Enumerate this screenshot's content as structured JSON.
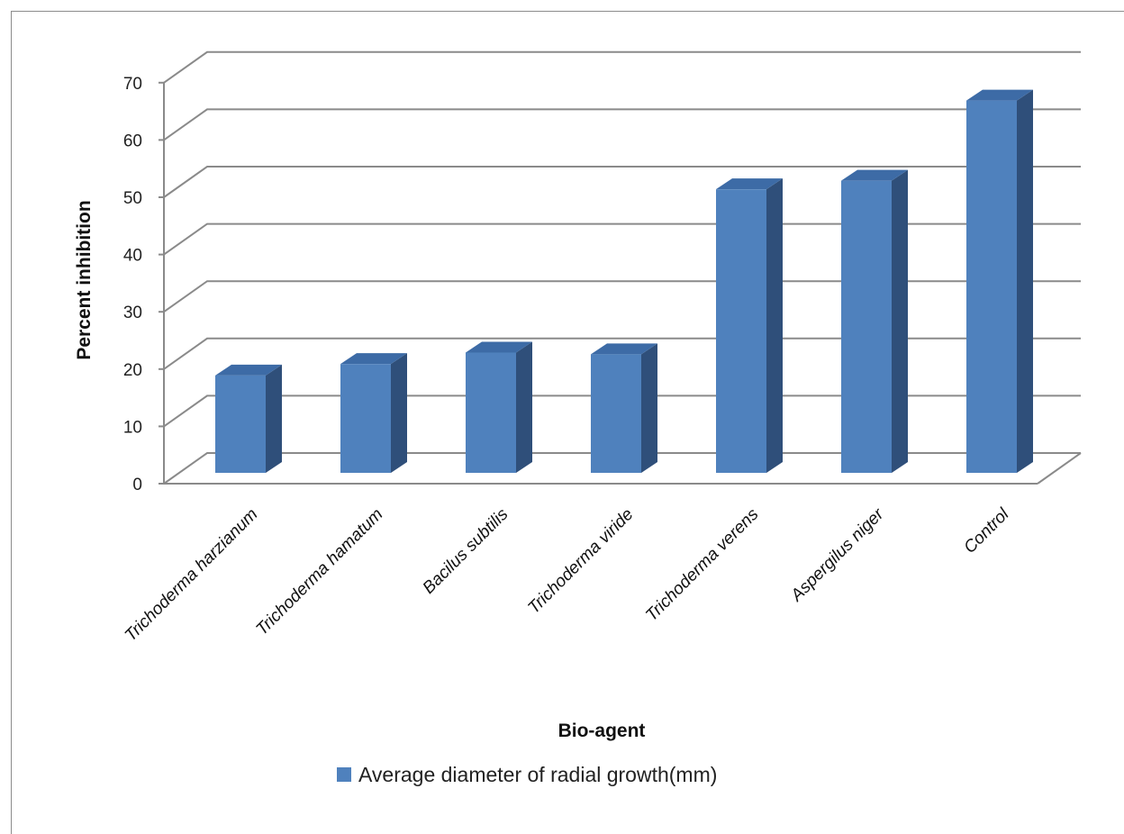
{
  "chart_data": {
    "type": "bar",
    "style": "3d-column",
    "categories": [
      "Trichoderma harzianum",
      "Trichoderma hamatum",
      "Bacilus subtilis",
      "Trichoderma viride",
      "Trichoderma verens",
      "Aspergilus niger",
      "Control"
    ],
    "series": [
      {
        "name": "Average diameter of radial growth(mm)",
        "values": [
          17,
          19,
          21,
          20.7,
          49.5,
          51,
          65
        ],
        "color": "#4f81bd"
      }
    ],
    "xlabel": "Bio-agent",
    "ylabel": "Percent inhibition",
    "ylim": [
      0,
      70
    ],
    "yticks": [
      0,
      10,
      20,
      30,
      40,
      50,
      60,
      70
    ],
    "grid": true,
    "legend_position": "bottom"
  }
}
